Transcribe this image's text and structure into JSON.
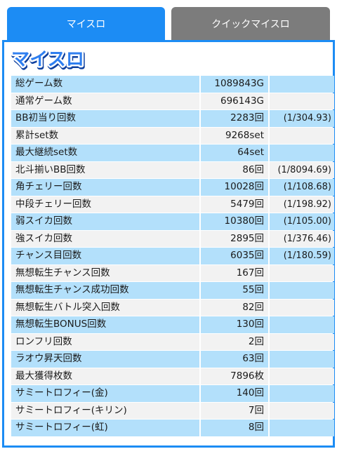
{
  "tabs": {
    "my_slot": "マイスロ",
    "quick_my_slot": "クイックマイスロ"
  },
  "logo": {
    "text": "マイスロ",
    "fill_color": "#2f7ff0",
    "outline_color": "#ffffff",
    "shadow_color": "#0d3f9e"
  },
  "colors": {
    "accent": "#1c8cf4",
    "inactive_tab": "#7c7c7c",
    "row_blue": "#b3e0fb",
    "row_gray": "#f2f2f2"
  },
  "stats": [
    {
      "label": "総ゲーム数",
      "value": "1089843G",
      "prob": "",
      "style": "blue"
    },
    {
      "label": "通常ゲーム数",
      "value": "696143G",
      "prob": "",
      "style": "gray"
    },
    {
      "label": "BB初当り回数",
      "value": "2283回",
      "prob": "(1/304.93)",
      "style": "blue"
    },
    {
      "label": "累計set数",
      "value": "9268set",
      "prob": "",
      "style": "gray"
    },
    {
      "label": "最大継続set数",
      "value": "64set",
      "prob": "",
      "style": "blue"
    },
    {
      "label": "北斗揃いBB回数",
      "value": "86回",
      "prob": "(1/8094.69)",
      "style": "gray"
    },
    {
      "label": "角チェリー回数",
      "value": "10028回",
      "prob": "(1/108.68)",
      "style": "blue"
    },
    {
      "label": "中段チェリー回数",
      "value": "5479回",
      "prob": "(1/198.92)",
      "style": "gray"
    },
    {
      "label": "弱スイカ回数",
      "value": "10380回",
      "prob": "(1/105.00)",
      "style": "blue"
    },
    {
      "label": "強スイカ回数",
      "value": "2895回",
      "prob": "(1/376.46)",
      "style": "gray"
    },
    {
      "label": "チャンス目回数",
      "value": "6035回",
      "prob": "(1/180.59)",
      "style": "blue"
    },
    {
      "label": "無想転生チャンス回数",
      "value": "167回",
      "prob": "",
      "style": "gray"
    },
    {
      "label": "無想転生チャンス成功回数",
      "value": "55回",
      "prob": "",
      "style": "blue"
    },
    {
      "label": "無想転生バトル突入回数",
      "value": "82回",
      "prob": "",
      "style": "gray"
    },
    {
      "label": "無想転生BONUS回数",
      "value": "130回",
      "prob": "",
      "style": "blue"
    },
    {
      "label": "ロンフリ回数",
      "value": "2回",
      "prob": "",
      "style": "gray"
    },
    {
      "label": "ラオウ昇天回数",
      "value": "63回",
      "prob": "",
      "style": "blue"
    },
    {
      "label": "最大獲得枚数",
      "value": "7896枚",
      "prob": "",
      "style": "gray"
    },
    {
      "label": "サミートロフィー(金)",
      "value": "140回",
      "prob": "",
      "style": "blue"
    },
    {
      "label": "サミートロフィー(キリン)",
      "value": "7回",
      "prob": "",
      "style": "gray"
    },
    {
      "label": "サミートロフィー(虹)",
      "value": "8回",
      "prob": "",
      "style": "blue"
    }
  ]
}
